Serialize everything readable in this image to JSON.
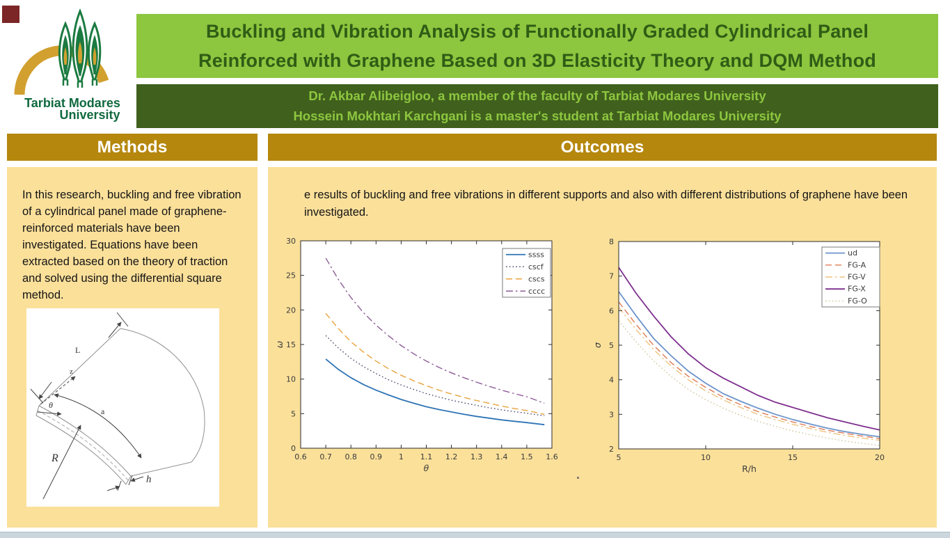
{
  "logo": {
    "name": "Tarbiat Modares University logo",
    "line1": "Tarbiat Modares",
    "line2": "University"
  },
  "header": {
    "title_line1": "Buckling and Vibration Analysis of Functionally Graded Cylindrical Panel",
    "title_line2": "Reinforced with Graphene Based on 3D Elasticity Theory and DQM Method",
    "author_line1": "Dr. Akbar Alibeigloo, a member of the faculty of Tarbiat Modares University",
    "author_line2": "Hossein Mokhtari Karchgani is a master's student at Tarbiat Modares University"
  },
  "methods": {
    "heading": "Methods",
    "body": "In this research, buckling and free vibration of a cylindrical panel made of graphene-reinforced materials have been investigated. Equations have been extracted based on the theory of traction and solved using the differential square method.",
    "diagram_labels": {
      "L": "L",
      "z": "z",
      "theta": "θ",
      "a": "a",
      "R": "R",
      "h": "h"
    }
  },
  "outcomes": {
    "heading": "Outcomes",
    "body": "e results of buckling and free vibrations in different supports and also with different distributions of graphene have been investigated."
  },
  "colors": {
    "title_bar_green": "#8dc63f",
    "title_text_green": "#2f5d15",
    "authors_bar_green": "#40601d",
    "section_gold": "#b5870d",
    "panel_yellow": "#fbe09a",
    "logo_gold": "#d2a02f",
    "logo_green": "#1b7a40",
    "maroon_square": "#7d2627",
    "bottom_strip": "#ccd7dd"
  },
  "chart_data": [
    {
      "type": "line",
      "title": "",
      "xlabel": "θ",
      "ylabel": "ω",
      "xlabel_italic": true,
      "ylabel_italic": true,
      "xlim": [
        0.6,
        1.6
      ],
      "ylim": [
        0,
        30
      ],
      "xticks": [
        0.6,
        0.7,
        0.8,
        0.9,
        1,
        1.1,
        1.2,
        1.3,
        1.4,
        1.5,
        1.6
      ],
      "yticks": [
        0,
        5,
        10,
        15,
        20,
        25,
        30
      ],
      "grid": false,
      "legend_position": "top-right",
      "x": [
        0.7,
        0.75,
        0.8,
        0.85,
        0.9,
        0.95,
        1.0,
        1.05,
        1.1,
        1.15,
        1.2,
        1.25,
        1.3,
        1.35,
        1.4,
        1.45,
        1.5,
        1.57
      ],
      "series": [
        {
          "name": "ssss",
          "style": "solid",
          "color": "#2e74b5",
          "values": [
            12.9,
            11.4,
            10.2,
            9.2,
            8.4,
            7.7,
            7.05,
            6.5,
            6.0,
            5.6,
            5.25,
            4.9,
            4.6,
            4.35,
            4.1,
            3.9,
            3.7,
            3.4
          ]
        },
        {
          "name": "cscf",
          "style": "dotted",
          "color": "#4a4a6e",
          "values": [
            16.3,
            14.5,
            13.0,
            11.8,
            10.8,
            9.9,
            9.15,
            8.5,
            7.9,
            7.4,
            6.95,
            6.55,
            6.2,
            5.85,
            5.55,
            5.3,
            5.05,
            4.7
          ]
        },
        {
          "name": "cscs",
          "style": "dashed",
          "color": "#e8a33d",
          "values": [
            19.5,
            17.3,
            15.4,
            13.9,
            12.6,
            11.5,
            10.55,
            9.75,
            9.05,
            8.4,
            7.85,
            7.35,
            6.9,
            6.5,
            6.1,
            5.75,
            5.45,
            4.9
          ]
        },
        {
          "name": "cccc",
          "style": "dashdot",
          "color": "#8e5c99",
          "values": [
            27.5,
            24.4,
            21.8,
            19.6,
            17.8,
            16.25,
            14.85,
            13.65,
            12.6,
            11.7,
            10.9,
            10.2,
            9.55,
            8.95,
            8.4,
            7.9,
            7.45,
            6.5
          ]
        }
      ]
    },
    {
      "type": "line",
      "title": "",
      "xlabel": "R/h",
      "ylabel": "σ",
      "xlabel_italic": false,
      "ylabel_italic": true,
      "xlim": [
        5,
        20
      ],
      "ylim": [
        2,
        8
      ],
      "xticks": [
        5,
        10,
        15,
        20
      ],
      "yticks": [
        2,
        3,
        4,
        5,
        6,
        7,
        8
      ],
      "grid": false,
      "legend_position": "top-right",
      "x": [
        5,
        6,
        7,
        8,
        9,
        10,
        11,
        12,
        13,
        14,
        15,
        16,
        17,
        18,
        19,
        20
      ],
      "series": [
        {
          "name": "ud",
          "style": "solid",
          "color": "#6c94cb",
          "values": [
            6.55,
            5.85,
            5.2,
            4.7,
            4.25,
            3.9,
            3.6,
            3.38,
            3.18,
            3.0,
            2.85,
            2.72,
            2.6,
            2.5,
            2.42,
            2.35
          ]
        },
        {
          "name": "FG-A",
          "style": "dashed",
          "color": "#e07b54",
          "values": [
            6.25,
            5.6,
            5.0,
            4.5,
            4.1,
            3.78,
            3.5,
            3.28,
            3.08,
            2.92,
            2.78,
            2.65,
            2.54,
            2.45,
            2.37,
            2.3
          ]
        },
        {
          "name": "FG-V",
          "style": "dashdot",
          "color": "#eec37e",
          "values": [
            6.1,
            5.45,
            4.88,
            4.4,
            4.0,
            3.68,
            3.42,
            3.2,
            3.0,
            2.85,
            2.71,
            2.59,
            2.48,
            2.39,
            2.31,
            2.25
          ]
        },
        {
          "name": "FG-X",
          "style": "solid",
          "color": "#7e2f8e",
          "values": [
            7.25,
            6.5,
            5.85,
            5.25,
            4.75,
            4.35,
            4.05,
            3.8,
            3.55,
            3.35,
            3.2,
            3.05,
            2.9,
            2.78,
            2.66,
            2.55
          ]
        },
        {
          "name": "FG-O",
          "style": "dotted",
          "color": "#cfc69b",
          "values": [
            5.7,
            5.1,
            4.55,
            4.1,
            3.72,
            3.42,
            3.18,
            2.97,
            2.8,
            2.65,
            2.52,
            2.41,
            2.31,
            2.23,
            2.16,
            2.1
          ]
        }
      ]
    }
  ]
}
